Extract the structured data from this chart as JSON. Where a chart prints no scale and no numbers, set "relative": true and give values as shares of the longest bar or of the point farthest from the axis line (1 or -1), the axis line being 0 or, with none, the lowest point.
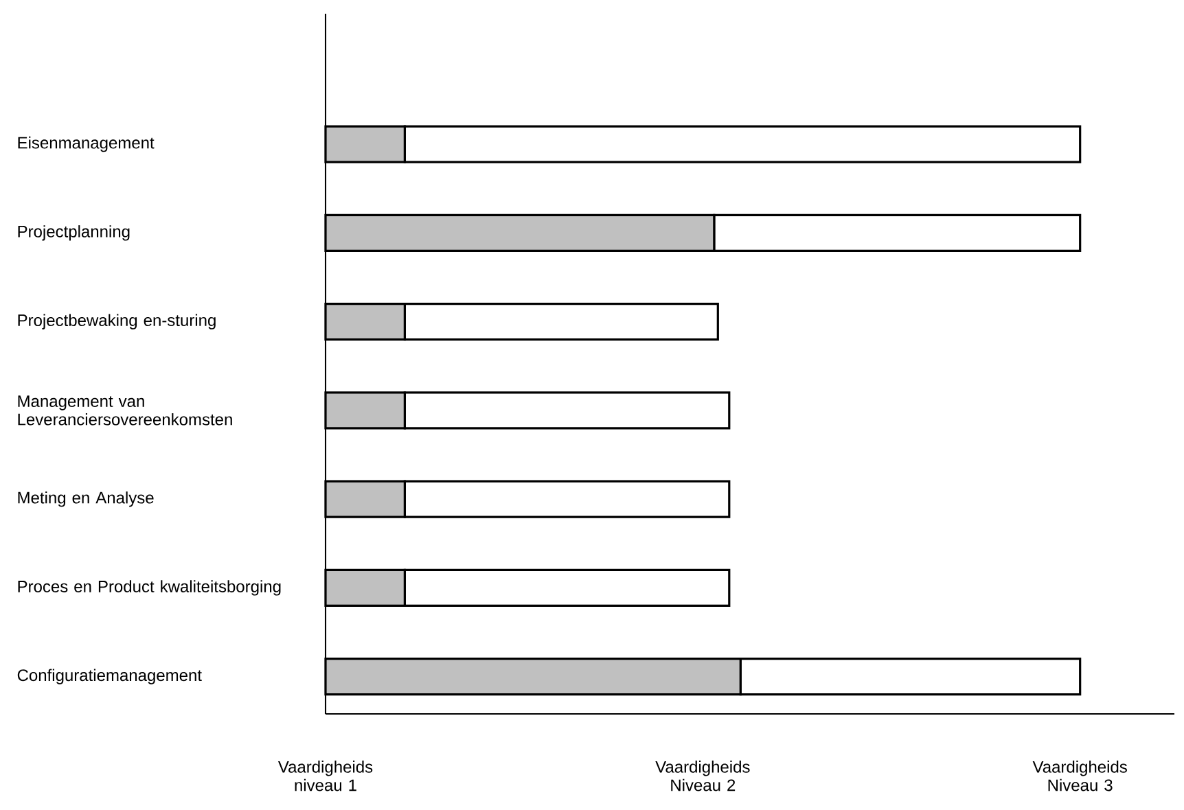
{
  "chart_data": {
    "type": "bar",
    "orientation": "horizontal",
    "stacked": true,
    "relative": true,
    "categories": [
      "Eisenmanagement",
      "Projectplanning",
      "Projectbewaking en-sturing",
      "Management van Leveranciersovereenkomsten",
      "Meting en Analyse",
      "Proces en Product kwaliteitsborging",
      "Configuratiemanagement"
    ],
    "series": [
      {
        "color": "#c0c0c0",
        "values": [
          0.105,
          0.515,
          0.105,
          0.105,
          0.105,
          0.105,
          0.55
        ]
      },
      {
        "color": "#ffffff",
        "values": [
          0.895,
          0.485,
          0.415,
          0.43,
          0.43,
          0.43,
          0.45
        ]
      }
    ],
    "annotations": [
      "Vaardigheids niveau 1",
      "Vaardigheids Niveau 2",
      "Vaardigheids Niveau 3"
    ]
  }
}
